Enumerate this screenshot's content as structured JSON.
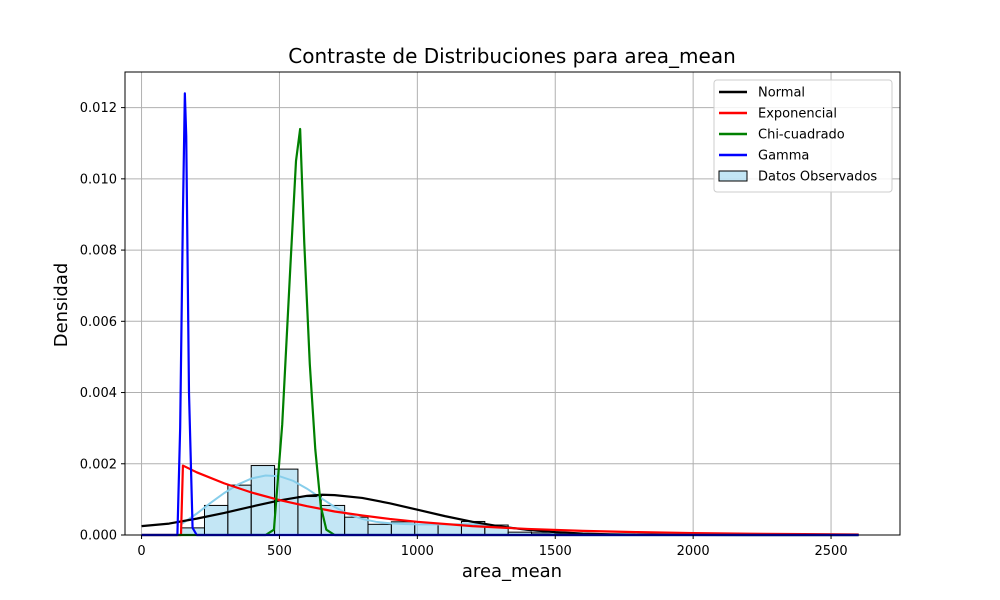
{
  "chart_data": {
    "type": "bar",
    "title": "Contraste de Distribuciones para area_mean",
    "xlabel": "area_mean",
    "ylabel": "Densidad",
    "xlim": [
      -60,
      2750
    ],
    "ylim": [
      0,
      0.013
    ],
    "x_ticks": [
      0,
      500,
      1000,
      1500,
      2000,
      2500
    ],
    "y_ticks": [
      0.0,
      0.002,
      0.004,
      0.006,
      0.008,
      0.01,
      0.012
    ],
    "y_tick_labels": [
      "0.000",
      "0.002",
      "0.004",
      "0.006",
      "0.008",
      "0.010",
      "0.012"
    ],
    "grid": true,
    "legend_position": "top-right",
    "histogram": {
      "name": "Datos Observados",
      "color": "#87ceeb",
      "edge_color": "#000000",
      "bin_edges": [
        143.5,
        228.2,
        312.9,
        397.6,
        482.3,
        567.0,
        651.7,
        736.4,
        821.1,
        905.8,
        990.5,
        1075.2,
        1159.9,
        1244.6,
        1329.3,
        1414.0,
        1498.7,
        1583.4,
        1668.1,
        1752.8,
        1837.5,
        1922.2,
        2006.9,
        2091.6,
        2176.3,
        2261.0,
        2345.7,
        2430.4,
        2515.1
      ],
      "densities": [
        0.0002,
        0.00083,
        0.0014,
        0.00195,
        0.00185,
        0.00108,
        0.00083,
        0.0005,
        0.0003,
        0.00037,
        0.0003,
        0.0003,
        0.00038,
        0.00028,
        8e-05,
        6e-05,
        3e-05,
        3e-05,
        2e-05,
        1e-05,
        1e-05,
        1e-05,
        0.0,
        0.0,
        0.0,
        0.0,
        0.0,
        0.0
      ],
      "kde": {
        "x": [
          143.5,
          200,
          250,
          300,
          350,
          400,
          450,
          500,
          550,
          600,
          650,
          700,
          750,
          800,
          850,
          900,
          950,
          1000,
          1050,
          1100,
          1150,
          1200,
          1250,
          1300,
          1350,
          1400,
          1450,
          1500,
          1600,
          1700,
          1800,
          2000,
          2200,
          2400,
          2501
        ],
        "y": [
          0.0003,
          0.0006,
          0.0009,
          0.00118,
          0.00142,
          0.00159,
          0.00167,
          0.00165,
          0.00152,
          0.0013,
          0.00104,
          0.00079,
          0.00058,
          0.00045,
          0.00037,
          0.00033,
          0.00031,
          0.0003,
          0.0003,
          0.0003,
          0.0003,
          0.0003,
          0.00028,
          0.00024,
          0.00019,
          0.00014,
          0.0001,
          7e-05,
          4e-05,
          2e-05,
          1e-05,
          5e-06,
          2e-06,
          1e-06,
          0.0
        ]
      }
    },
    "series": [
      {
        "name": "Normal",
        "color": "#000000",
        "x": [
          0,
          100,
          200,
          300,
          400,
          500,
          600,
          654.9,
          700,
          800,
          900,
          1000,
          1100,
          1200,
          1300,
          1400,
          1500,
          1600,
          1700,
          1800,
          1900,
          2000,
          2200,
          2400,
          2600
        ],
        "y": [
          0.00025,
          0.00032,
          0.00046,
          0.00062,
          0.0008,
          0.00097,
          0.0011,
          0.00113,
          0.00112,
          0.00104,
          0.00089,
          0.00071,
          0.00053,
          0.00037,
          0.00024,
          0.000145,
          8e-05,
          4e-05,
          2e-05,
          1e-05,
          4e-06,
          2e-06,
          0.0,
          0.0,
          0.0
        ]
      },
      {
        "name": "Exponencial",
        "color": "#ff0000",
        "x": [
          0,
          120,
          143,
          150,
          200,
          300,
          400,
          500,
          600,
          700,
          800,
          900,
          1000,
          1200,
          1400,
          1600,
          1800,
          2000,
          2200,
          2400,
          2600
        ],
        "y": [
          0.0,
          0.0,
          0.0,
          0.00195,
          0.00176,
          0.00145,
          0.00119,
          0.00098,
          0.00081,
          0.00066,
          0.00055,
          0.00045,
          0.00037,
          0.00025,
          0.00017,
          0.000115,
          8e-05,
          5.3e-05,
          3.6e-05,
          2.4e-05,
          1.6e-05
        ]
      },
      {
        "name": "Chi-cuadrado",
        "color": "#008000",
        "x": [
          0,
          450,
          480,
          510,
          540,
          560,
          575,
          590,
          610,
          630,
          650,
          670,
          700,
          800,
          1000,
          2600
        ],
        "y": [
          0.0,
          0.0,
          0.00015,
          0.0031,
          0.0076,
          0.0105,
          0.0114,
          0.0082,
          0.0048,
          0.0024,
          0.0008,
          0.00015,
          0.0,
          0.0,
          0.0,
          0.0
        ]
      },
      {
        "name": "Gamma",
        "color": "#0000ff",
        "x": [
          0,
          130,
          140,
          150,
          157,
          162,
          172,
          185,
          200,
          300,
          600,
          1200,
          2600
        ],
        "y": [
          0.0,
          0.0,
          0.003,
          0.009,
          0.0124,
          0.0112,
          0.004,
          0.0002,
          0.0,
          0.0,
          0.0,
          0.0,
          0.0
        ]
      }
    ]
  }
}
